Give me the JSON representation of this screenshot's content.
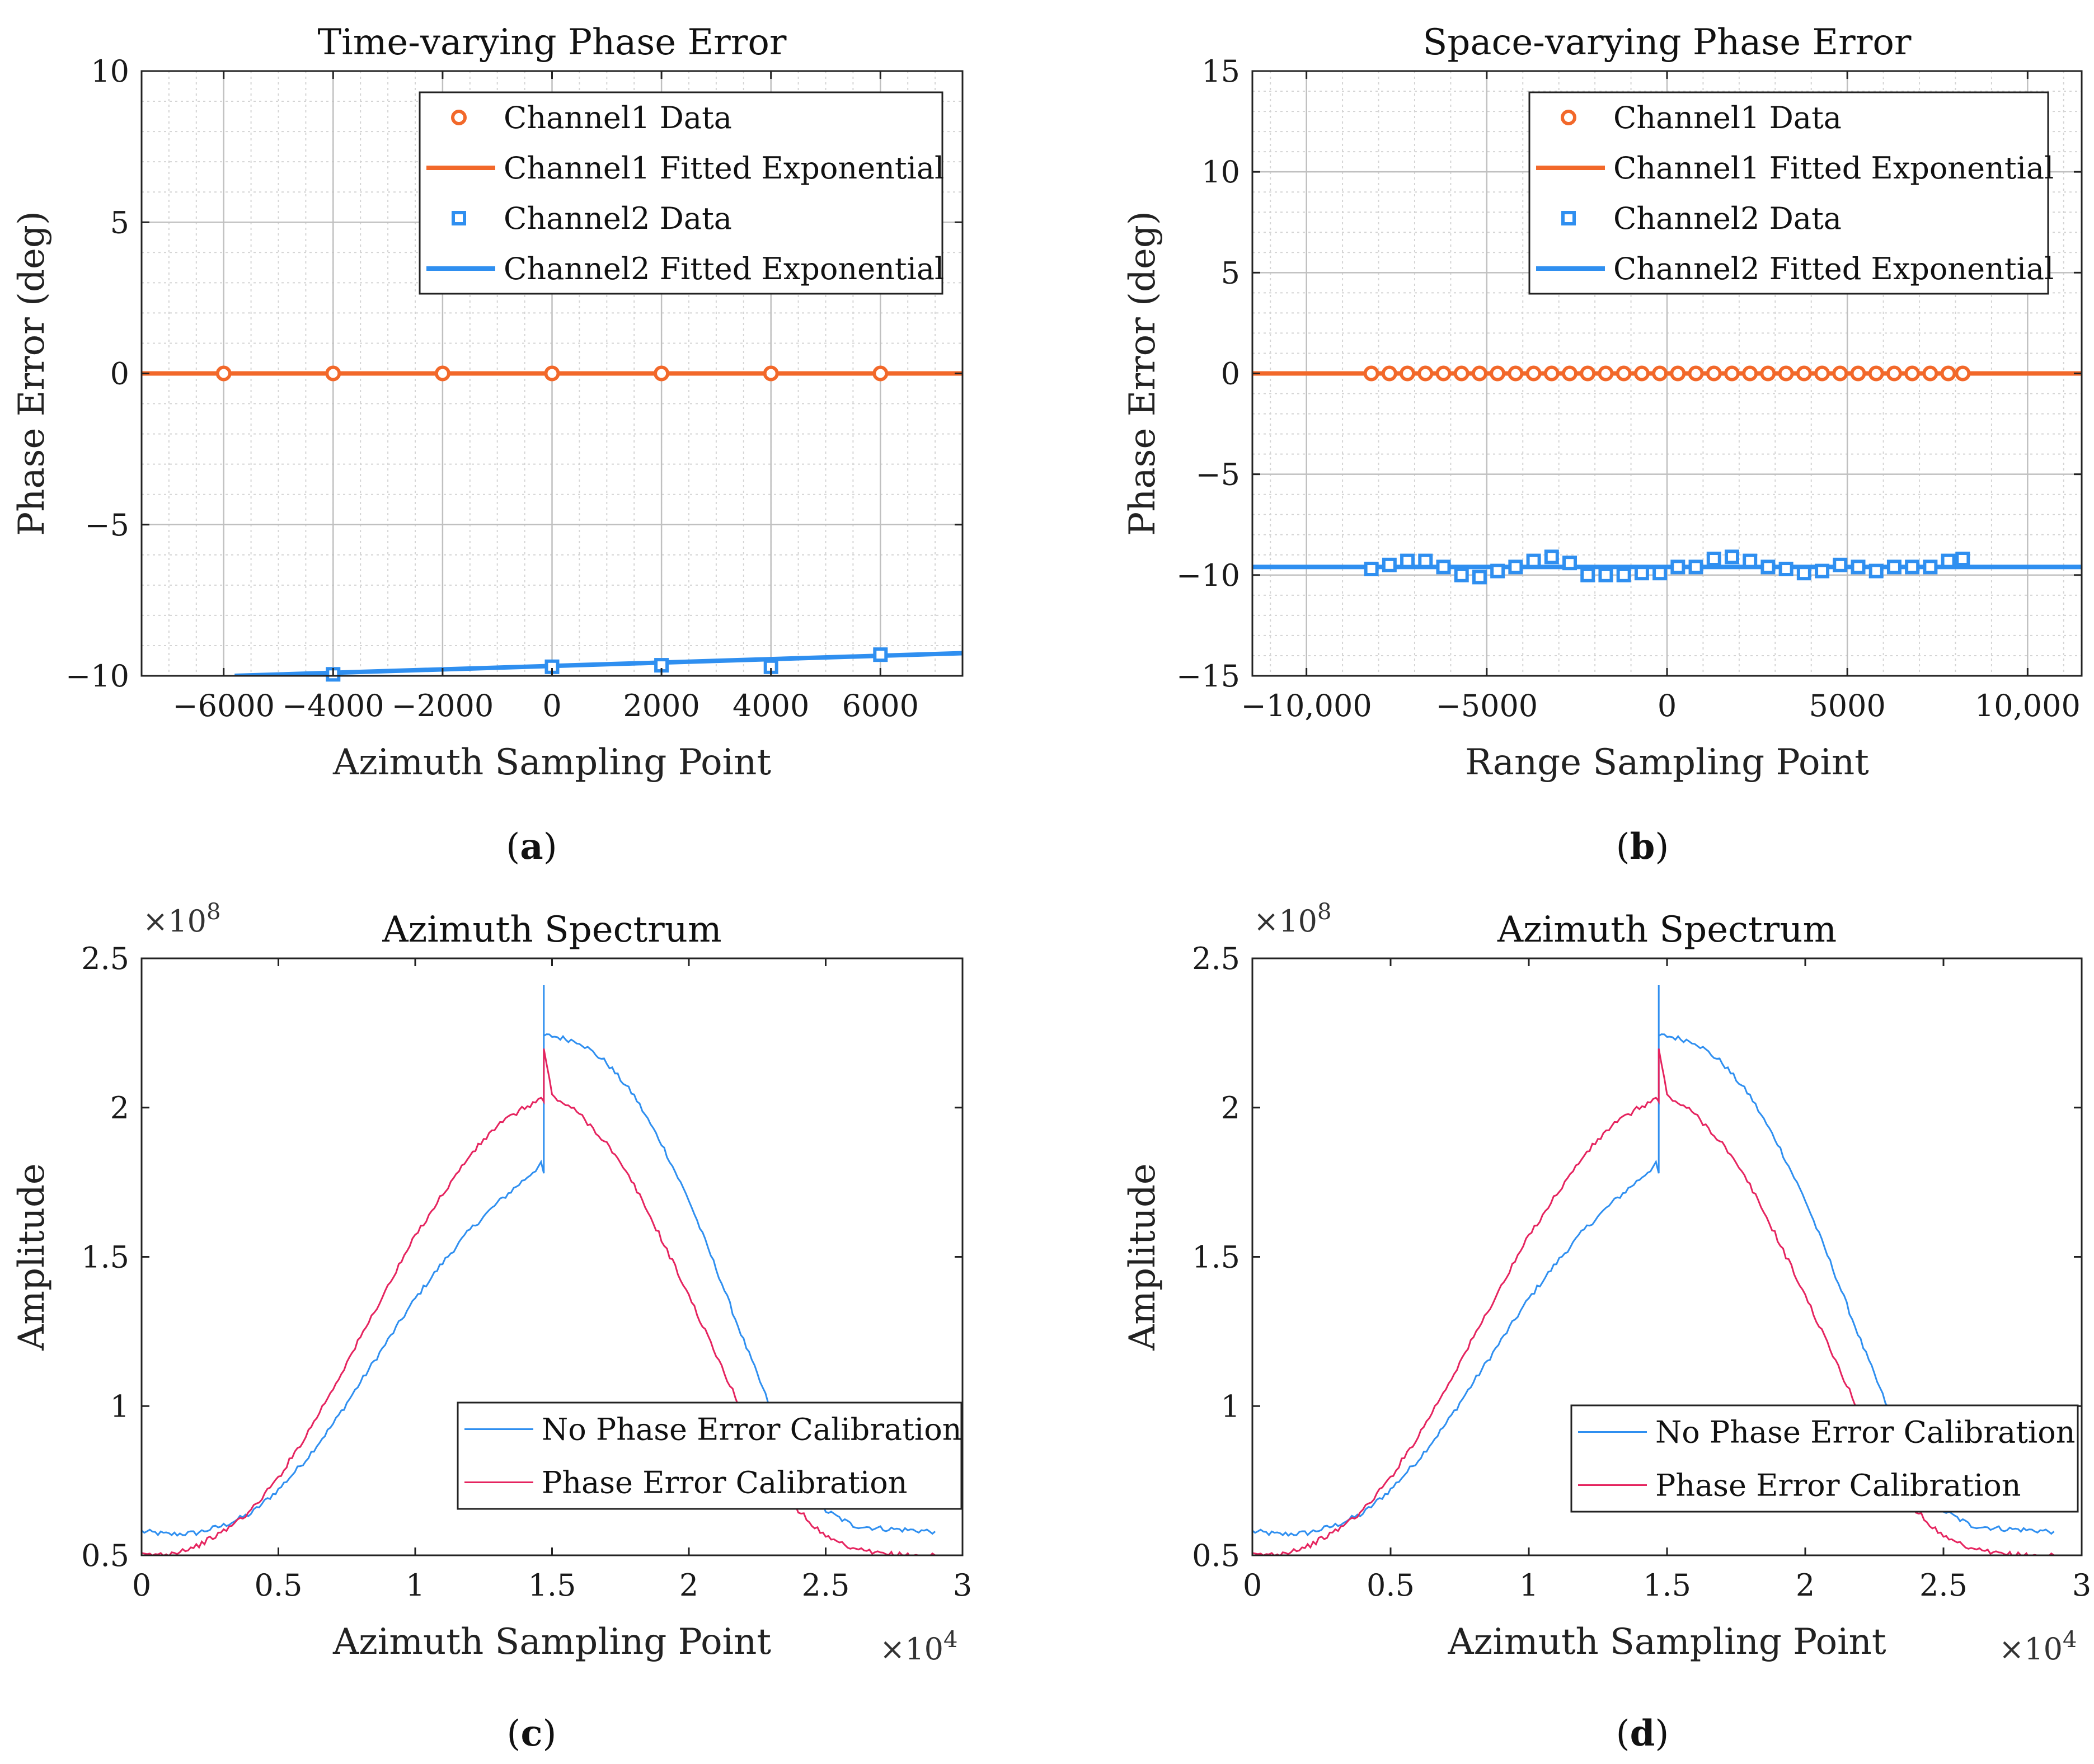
{
  "panels": {
    "a": "a",
    "b": "b",
    "c": "c",
    "d": "d"
  },
  "chart_data": [
    {
      "id": "a",
      "type": "scatter",
      "title": "Time-varying Phase Error",
      "xlabel": "Azimuth Sampling Point",
      "ylabel": "Phase Error (deg)",
      "xlim": [
        -7500,
        7500
      ],
      "ylim": [
        -10,
        10
      ],
      "xticks": [
        -6000,
        -4000,
        -2000,
        0,
        2000,
        4000,
        6000
      ],
      "xticklabels": [
        "−6000",
        "−4000",
        "−2000",
        "0",
        "2000",
        "4000",
        "6000"
      ],
      "yticks": [
        -10,
        -5,
        0,
        5,
        10
      ],
      "yticklabels": [
        "−10",
        "−5",
        "0",
        "5",
        "10"
      ],
      "grid": true,
      "legend_position": "top-right",
      "series": [
        {
          "name": "Channel1 Data",
          "kind": "marker",
          "marker": "circle",
          "color": "#f2682a",
          "x": [
            -6000,
            -4000,
            -2000,
            0,
            2000,
            4000,
            6000
          ],
          "y": [
            0,
            0,
            0,
            0,
            0,
            0,
            0
          ]
        },
        {
          "name": "Channel1 Fitted Exponential",
          "kind": "line",
          "color": "#f2682a",
          "x": [
            -7500,
            7500
          ],
          "y": [
            0,
            0
          ]
        },
        {
          "name": "Channel2 Data",
          "kind": "marker",
          "marker": "square",
          "color": "#2f8ff0",
          "x": [
            -4000,
            0,
            2000,
            4000,
            6000
          ],
          "y": [
            -9.95,
            -9.7,
            -9.65,
            -9.7,
            -9.3
          ]
        },
        {
          "name": "Channel2 Fitted Exponential",
          "kind": "line",
          "color": "#2f8ff0",
          "x": [
            -5800,
            7500
          ],
          "y": [
            -10.0,
            -9.25
          ]
        }
      ]
    },
    {
      "id": "b",
      "type": "scatter",
      "title": "Space-varying Phase Error",
      "xlabel": "Range Sampling Point",
      "ylabel": "Phase Error (deg)",
      "xlim": [
        -11500,
        11500
      ],
      "ylim": [
        -15,
        15
      ],
      "xticks": [
        -10000,
        -5000,
        0,
        5000,
        10000
      ],
      "xticklabels": [
        "−10,000",
        "−5000",
        "0",
        "5000",
        "10,000"
      ],
      "yticks": [
        -15,
        -10,
        -5,
        0,
        5,
        10,
        15
      ],
      "yticklabels": [
        "−15",
        "−10",
        "−5",
        "0",
        "5",
        "10",
        "15"
      ],
      "grid": true,
      "legend_position": "top-right",
      "series": [
        {
          "name": "Channel1 Data",
          "kind": "marker",
          "marker": "circle",
          "color": "#f2682a",
          "x": [
            -8200,
            -7700,
            -7200,
            -6700,
            -6200,
            -5700,
            -5200,
            -4700,
            -4200,
            -3700,
            -3200,
            -2700,
            -2200,
            -1700,
            -1200,
            -700,
            -200,
            300,
            800,
            1300,
            1800,
            2300,
            2800,
            3300,
            3800,
            4300,
            4800,
            5300,
            5800,
            6300,
            6800,
            7300,
            7800,
            8200
          ],
          "y": [
            0,
            0,
            0,
            0,
            0,
            0,
            0,
            0,
            0,
            0,
            0,
            0,
            0,
            0,
            0,
            0,
            0,
            0,
            0,
            0,
            0,
            0,
            0,
            0,
            0,
            0,
            0,
            0,
            0,
            0,
            0,
            0,
            0,
            0
          ]
        },
        {
          "name": "Channel1 Fitted Exponential",
          "kind": "line",
          "color": "#f2682a",
          "x": [
            -11500,
            11500
          ],
          "y": [
            0,
            0
          ]
        },
        {
          "name": "Channel2 Data",
          "kind": "marker",
          "marker": "square",
          "color": "#2f8ff0",
          "x": [
            -8200,
            -7700,
            -7200,
            -6700,
            -6200,
            -5700,
            -5200,
            -4700,
            -4200,
            -3700,
            -3200,
            -2700,
            -2200,
            -1700,
            -1200,
            -700,
            -200,
            300,
            800,
            1300,
            1800,
            2300,
            2800,
            3300,
            3800,
            4300,
            4800,
            5300,
            5800,
            6300,
            6800,
            7300,
            7800,
            8200
          ],
          "y": [
            -9.7,
            -9.5,
            -9.3,
            -9.3,
            -9.6,
            -10.0,
            -10.1,
            -9.8,
            -9.6,
            -9.3,
            -9.1,
            -9.4,
            -10.0,
            -10.0,
            -10.0,
            -9.9,
            -9.9,
            -9.6,
            -9.6,
            -9.2,
            -9.1,
            -9.3,
            -9.6,
            -9.7,
            -9.9,
            -9.8,
            -9.5,
            -9.6,
            -9.8,
            -9.6,
            -9.6,
            -9.6,
            -9.3,
            -9.2
          ]
        },
        {
          "name": "Channel2 Fitted Exponential",
          "kind": "line",
          "color": "#2f8ff0",
          "x": [
            -11500,
            11500
          ],
          "y": [
            -9.6,
            -9.6
          ]
        }
      ]
    },
    {
      "id": "c",
      "type": "line",
      "title": "Azimuth Spectrum",
      "xlabel": "Azimuth Sampling Point",
      "ylabel": "Amplitude",
      "x_multiplier": "×10",
      "x_multiplier_exp": "4",
      "y_multiplier": "×10",
      "y_multiplier_exp": "8",
      "xlim": [
        0,
        3
      ],
      "ylim": [
        0.5,
        2.5
      ],
      "xticks": [
        0,
        0.5,
        1,
        1.5,
        2,
        2.5,
        3
      ],
      "xticklabels": [
        "0",
        "0.5",
        "1",
        "1.5",
        "2",
        "2.5",
        "3"
      ],
      "yticks": [
        0.5,
        1,
        1.5,
        2,
        2.5
      ],
      "yticklabels": [
        "0.5",
        "1",
        "1.5",
        "2",
        "2.5"
      ],
      "grid": false,
      "legend_position": "lower-right",
      "series": [
        {
          "name": "No Phase Error Calibration",
          "color": "#2f8ff0",
          "x": [
            0,
            0.1,
            0.2,
            0.3,
            0.4,
            0.5,
            0.6,
            0.7,
            0.8,
            0.9,
            1.0,
            1.1,
            1.2,
            1.3,
            1.4,
            1.46,
            1.47,
            1.47,
            1.47,
            1.5,
            1.6,
            1.7,
            1.8,
            1.9,
            2.0,
            2.1,
            2.2,
            2.3,
            2.4,
            2.5,
            2.6,
            2.7,
            2.8,
            2.9
          ],
          "y": [
            0.58,
            0.57,
            0.575,
            0.6,
            0.64,
            0.72,
            0.82,
            0.94,
            1.08,
            1.22,
            1.36,
            1.48,
            1.59,
            1.68,
            1.76,
            1.81,
            1.78,
            2.41,
            2.24,
            2.24,
            2.22,
            2.15,
            2.04,
            1.88,
            1.69,
            1.46,
            1.22,
            0.99,
            0.79,
            0.65,
            0.6,
            0.59,
            0.585,
            0.58
          ]
        },
        {
          "name": "Phase Error Calibration",
          "color": "#e5245f",
          "x": [
            0,
            0.1,
            0.2,
            0.3,
            0.4,
            0.5,
            0.6,
            0.7,
            0.8,
            0.9,
            1.0,
            1.1,
            1.2,
            1.3,
            1.4,
            1.46,
            1.47,
            1.47,
            1.5,
            1.6,
            1.7,
            1.8,
            1.9,
            2.0,
            2.1,
            2.2,
            2.3,
            2.4,
            2.5,
            2.6,
            2.7,
            2.8,
            2.9
          ],
          "y": [
            0.5,
            0.505,
            0.53,
            0.58,
            0.65,
            0.76,
            0.9,
            1.06,
            1.23,
            1.4,
            1.57,
            1.71,
            1.84,
            1.94,
            2.0,
            2.03,
            2.02,
            2.2,
            2.04,
            1.98,
            1.88,
            1.74,
            1.56,
            1.37,
            1.17,
            0.97,
            0.8,
            0.65,
            0.56,
            0.52,
            0.505,
            0.5,
            0.5
          ]
        }
      ]
    },
    {
      "id": "d",
      "type": "line",
      "title": "Azimuth Spectrum",
      "xlabel": "Azimuth Sampling Point",
      "ylabel": "Amplitude",
      "x_multiplier": "×10",
      "x_multiplier_exp": "4",
      "y_multiplier": "×10",
      "y_multiplier_exp": "8",
      "xlim": [
        0,
        3
      ],
      "ylim": [
        0.5,
        2.5
      ],
      "xticks": [
        0,
        0.5,
        1,
        1.5,
        2,
        2.5,
        3
      ],
      "xticklabels": [
        "0",
        "0.5",
        "1",
        "1.5",
        "2",
        "2.5",
        "3"
      ],
      "yticks": [
        0.5,
        1,
        1.5,
        2,
        2.5
      ],
      "yticklabels": [
        "0.5",
        "1",
        "1.5",
        "2",
        "2.5"
      ],
      "grid": false,
      "legend_position": "lower-right",
      "series": [
        {
          "name": "No Phase Error Calibration",
          "color": "#2f8ff0",
          "x": [
            0,
            0.1,
            0.2,
            0.3,
            0.4,
            0.5,
            0.6,
            0.7,
            0.8,
            0.9,
            1.0,
            1.1,
            1.2,
            1.3,
            1.4,
            1.46,
            1.47,
            1.47,
            1.47,
            1.5,
            1.6,
            1.7,
            1.8,
            1.9,
            2.0,
            2.1,
            2.2,
            2.3,
            2.4,
            2.5,
            2.6,
            2.7,
            2.8,
            2.9
          ],
          "y": [
            0.58,
            0.57,
            0.575,
            0.6,
            0.64,
            0.72,
            0.82,
            0.94,
            1.08,
            1.22,
            1.36,
            1.48,
            1.59,
            1.68,
            1.76,
            1.81,
            1.78,
            2.41,
            2.24,
            2.24,
            2.22,
            2.15,
            2.04,
            1.88,
            1.69,
            1.46,
            1.22,
            0.99,
            0.79,
            0.65,
            0.6,
            0.59,
            0.585,
            0.58
          ]
        },
        {
          "name": "Phase Error Calibration",
          "color": "#e5245f",
          "x": [
            0,
            0.1,
            0.2,
            0.3,
            0.4,
            0.5,
            0.6,
            0.7,
            0.8,
            0.9,
            1.0,
            1.1,
            1.2,
            1.3,
            1.4,
            1.46,
            1.47,
            1.47,
            1.5,
            1.6,
            1.7,
            1.8,
            1.9,
            2.0,
            2.1,
            2.2,
            2.3,
            2.4,
            2.5,
            2.6,
            2.7,
            2.8,
            2.9
          ],
          "y": [
            0.5,
            0.505,
            0.53,
            0.58,
            0.65,
            0.76,
            0.9,
            1.06,
            1.23,
            1.4,
            1.57,
            1.71,
            1.84,
            1.94,
            2.0,
            2.03,
            2.02,
            2.2,
            2.04,
            1.98,
            1.88,
            1.74,
            1.56,
            1.37,
            1.17,
            0.97,
            0.8,
            0.65,
            0.56,
            0.52,
            0.505,
            0.5,
            0.5
          ]
        }
      ]
    }
  ]
}
